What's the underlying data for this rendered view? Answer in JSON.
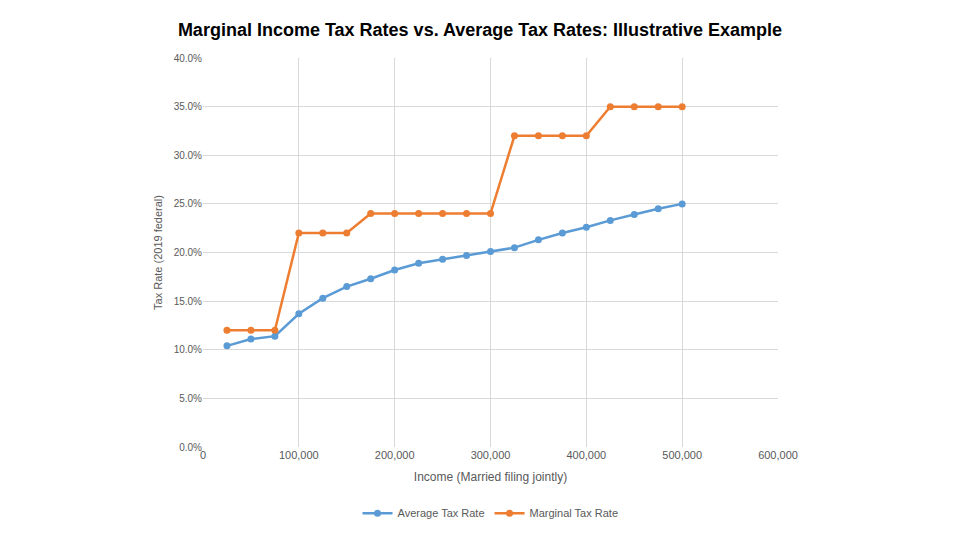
{
  "chart_data": {
    "type": "line",
    "title": "Marginal Income Tax Rates vs. Average Tax Rates: Illustrative Example",
    "x_label": "Income (Married filing jointly)",
    "y_label": "Tax Rate (2019 federal)",
    "x": [
      25000,
      50000,
      75000,
      100000,
      125000,
      150000,
      175000,
      200000,
      225000,
      250000,
      275000,
      300000,
      325000,
      350000,
      375000,
      400000,
      425000,
      450000,
      475000,
      500000
    ],
    "series": [
      {
        "name": "Average Tax Rate",
        "color": "#5b9bd5",
        "marker": "circle",
        "line_style": "solid",
        "values": [
          10.4,
          11.1,
          11.4,
          13.7,
          15.3,
          16.5,
          17.3,
          18.2,
          18.9,
          19.3,
          19.7,
          20.1,
          20.5,
          21.3,
          22.0,
          22.6,
          23.3,
          23.9,
          24.5,
          25.0
        ]
      },
      {
        "name": "Marginal Tax Rate",
        "color": "#ed7d31",
        "marker": "circle",
        "line_style": "solid",
        "values": [
          12,
          12,
          12,
          22,
          22,
          22,
          24,
          24,
          24,
          24,
          24,
          24,
          32,
          32,
          32,
          32,
          35,
          35,
          35,
          35
        ]
      }
    ],
    "xlim": [
      0,
      600000
    ],
    "xticks": [
      0,
      {
        "value": 100000,
        "label": "100,000"
      },
      {
        "value": 200000,
        "label": "200,000"
      },
      {
        "value": 300000,
        "label": "300,000"
      },
      {
        "value": 400000,
        "label": "400,000"
      },
      {
        "value": 500000,
        "label": "500,000"
      },
      {
        "value": 600000,
        "label": "600,000"
      }
    ],
    "ylim": [
      0,
      40
    ],
    "yticks": [
      {
        "value": 0,
        "label": "0.0%"
      },
      {
        "value": 5,
        "label": "5.0%"
      },
      {
        "value": 10,
        "label": "10.0%"
      },
      {
        "value": 15,
        "label": "15.0%"
      },
      {
        "value": 20,
        "label": "20.0%"
      },
      {
        "value": 25,
        "label": "25.0%"
      },
      {
        "value": 30,
        "label": "30.0%"
      },
      {
        "value": 35,
        "label": "35.0%"
      },
      {
        "value": 40,
        "label": "40.0%"
      }
    ],
    "grid": true,
    "legend": "bottom"
  }
}
